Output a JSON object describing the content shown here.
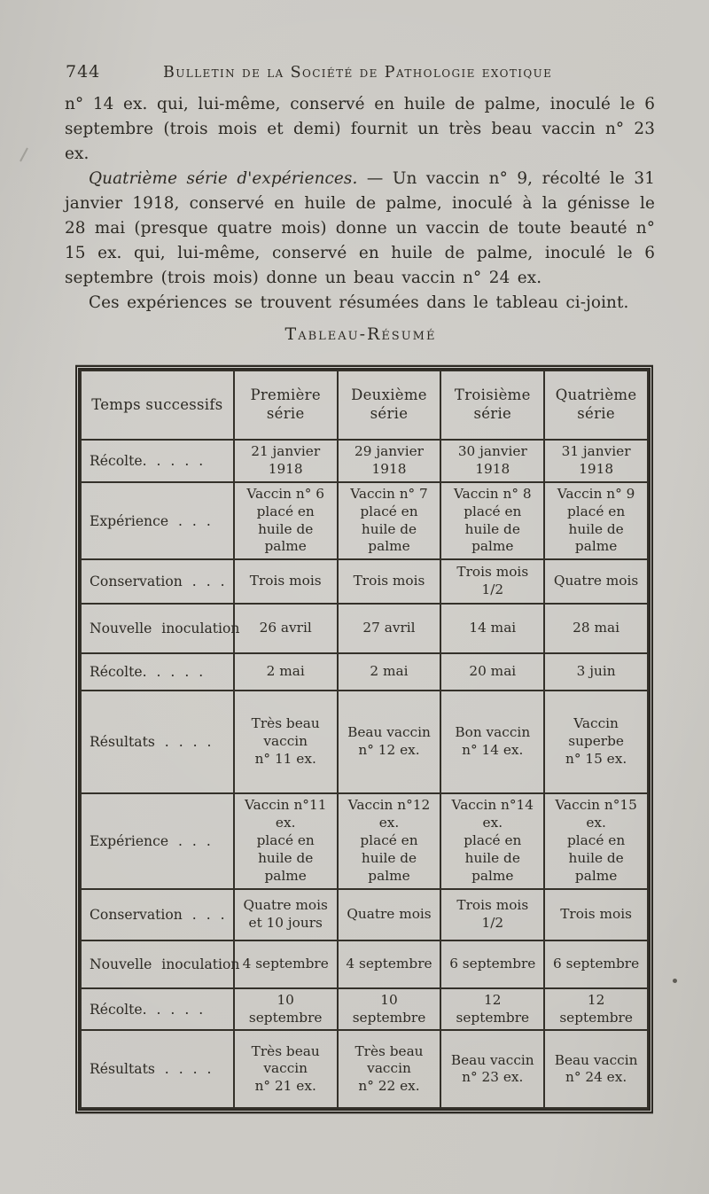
{
  "colors": {
    "paper": "#c9c7c2",
    "ink": "#2d2a24"
  },
  "running_head": {
    "page_number": "744",
    "journal_title": "Bulletin de la Société de Pathologie exotique"
  },
  "body": {
    "paragraph_1": "n° 14 ex. qui, lui-même, conservé en huile de palme, inoculé le 6 septembre (trois mois et demi) fournit un très beau vaccin n° 23 ex.",
    "paragraph_2_lead": "Quatrième série d'expériences.",
    "paragraph_2_rest": " — Un vaccin n° 9, récolté le 31 janvier 1918, conservé en huile de palme, inoculé à la génisse le 28 mai (presque quatre mois) donne un vaccin de toute beauté n° 15 ex. qui, lui-même, conservé en huile de palme, inoculé le 6 septembre (trois mois) donne un beau vaccin n° 24 ex.",
    "paragraph_3": "Ces expériences se trouvent résumées dans le tableau ci-joint."
  },
  "table": {
    "title": "Tableau-Résumé",
    "header": [
      "Temps successifs",
      "Première\nsérie",
      "Deuxième\nsérie",
      "Troisième\nsérie",
      "Quatrième\nsérie"
    ],
    "rows": [
      {
        "label": "Récolte. . . . .",
        "cells": [
          "21 janvier 1918",
          "29 janvier 1918",
          "30 janvier 1918",
          "31 janvier 1918"
        ]
      },
      {
        "label": "Expérience . . .",
        "cells": [
          "Vaccin n° 6\nplacé en\nhuile de palme",
          "Vaccin n° 7\nplacé en\nhuile de palme",
          "Vaccin n° 8\nplacé en\nhuile de palme",
          "Vaccin n° 9\nplacé en\nhuile de palme"
        ]
      },
      {
        "label": "Conservation . . .",
        "cells": [
          "Trois mois",
          "Trois mois",
          "Trois mois 1/2",
          "Quatre mois"
        ]
      },
      {
        "label": "Nouvelle inoculation",
        "cells": [
          "26 avril",
          "27 avril",
          "14 mai",
          "28 mai"
        ]
      },
      {
        "label": "Récolte. . . . .",
        "cells": [
          "2 mai",
          "2 mai",
          "20 mai",
          "3 juin"
        ]
      },
      {
        "label": "Résultats . . . .",
        "cells": [
          "Très beau\nvaccin\nn° 11 ex.",
          "Beau vaccin\nn° 12 ex.",
          "Bon vaccin\nn° 14 ex.",
          "Vaccin\nsuperbe\nn° 15 ex."
        ]
      },
      {
        "label": "Expérience . . .",
        "cells": [
          "Vaccin n°11 ex.\nplacé en\nhuile de palme",
          "Vaccin n°12 ex.\nplacé en\nhuile de palme",
          "Vaccin n°14 ex.\nplacé en\nhuile de palme",
          "Vaccin n°15 ex.\nplacé en\nhuile de palme"
        ]
      },
      {
        "label": "Conservation . . .",
        "cells": [
          "Quatre mois\net 10 jours",
          "Quatre mois",
          "Trois mois 1/2",
          "Trois mois"
        ]
      },
      {
        "label": "Nouvelle inoculation",
        "cells": [
          "4 septembre",
          "4 septembre",
          "6 septembre",
          "6 septembre"
        ]
      },
      {
        "label": "Récolte. . . . .",
        "cells": [
          "10 septembre",
          "10 septembre",
          "12 septembre",
          "12 septembre"
        ]
      },
      {
        "label": "Résultats . . . .",
        "cells": [
          "Très beau\nvaccin\nn° 21 ex.",
          "Très beau\nvaccin\nn° 22 ex.",
          "Beau vaccin\nn° 23 ex.",
          "Beau vaccin\nn° 24 ex."
        ]
      }
    ]
  }
}
